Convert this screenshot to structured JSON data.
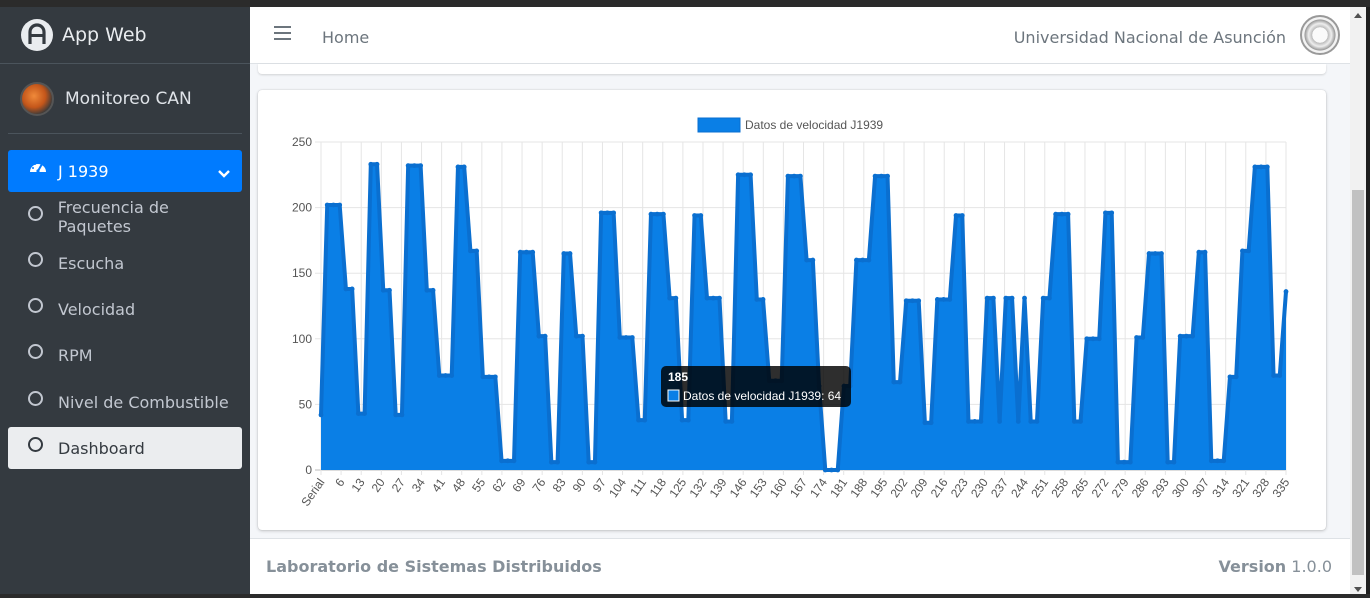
{
  "brand": {
    "title": "App Web"
  },
  "user": {
    "name": "Monitoreo CAN"
  },
  "sidebar": {
    "group_label": "J 1939",
    "items": [
      {
        "label": "Frecuencia de Paquetes"
      },
      {
        "label": "Escucha"
      },
      {
        "label": "Velocidad"
      },
      {
        "label": "RPM"
      },
      {
        "label": "Nivel de Combustible"
      },
      {
        "label": "Dashboard"
      }
    ]
  },
  "header": {
    "home_label": "Home",
    "university": "Universidad Nacional de Asunción"
  },
  "footer": {
    "left": "Laboratorio de Sistemas Distribuidos",
    "version_label": "Version",
    "version_value": "1.0.0"
  },
  "colors": {
    "accent": "#007bff",
    "sidebar_bg": "#343a40",
    "chart_fill": "#0a7fe6"
  },
  "tooltip": {
    "title": "185",
    "text": "Datos de velocidad J1939: 64"
  },
  "chart_data": {
    "type": "area",
    "legend": [
      "Datos de velocidad J1939"
    ],
    "legend_position": "top",
    "grid": true,
    "ylim": [
      0,
      250
    ],
    "yticks": [
      0,
      50,
      100,
      150,
      200,
      250
    ],
    "xticks": [
      "Serial",
      "6",
      "13",
      "20",
      "27",
      "34",
      "41",
      "48",
      "55",
      "62",
      "69",
      "76",
      "83",
      "90",
      "97",
      "104",
      "111",
      "118",
      "125",
      "132",
      "139",
      "146",
      "153",
      "160",
      "167",
      "174",
      "181",
      "188",
      "195",
      "202",
      "209",
      "216",
      "223",
      "230",
      "237",
      "244",
      "251",
      "258",
      "265",
      "272",
      "279",
      "286",
      "293",
      "300",
      "307",
      "314",
      "321",
      "328",
      "335"
    ],
    "series": [
      {
        "name": "Datos de velocidad J1939",
        "values": [
          42,
          202,
          202,
          202,
          138,
          138,
          43,
          43,
          233,
          233,
          137,
          137,
          42,
          42,
          232,
          232,
          232,
          137,
          137,
          72,
          72,
          72,
          231,
          231,
          167,
          167,
          71,
          71,
          71,
          7,
          7,
          7,
          166,
          166,
          166,
          102,
          102,
          6,
          6,
          165,
          165,
          102,
          102,
          6,
          6,
          196,
          196,
          196,
          101,
          101,
          101,
          38,
          38,
          195,
          195,
          195,
          131,
          131,
          38,
          38,
          194,
          194,
          131,
          131,
          131,
          37,
          37,
          225,
          225,
          225,
          130,
          130,
          68,
          68,
          68,
          224,
          224,
          224,
          160,
          160,
          64,
          0,
          0,
          0,
          64,
          64,
          160,
          160,
          160,
          224,
          224,
          224,
          67,
          67,
          129,
          129,
          129,
          36,
          36,
          130,
          130,
          130,
          194,
          194,
          37,
          37,
          37,
          131,
          131,
          37,
          131,
          131,
          37,
          131,
          37,
          37,
          131,
          131,
          195,
          195,
          195,
          37,
          37,
          100,
          100,
          100,
          196,
          196,
          6,
          6,
          6,
          101,
          101,
          165,
          165,
          165,
          6,
          6,
          102,
          102,
          102,
          166,
          166,
          7,
          7,
          7,
          71,
          71,
          167,
          167,
          231,
          231,
          231,
          72,
          72,
          136
        ]
      }
    ]
  }
}
